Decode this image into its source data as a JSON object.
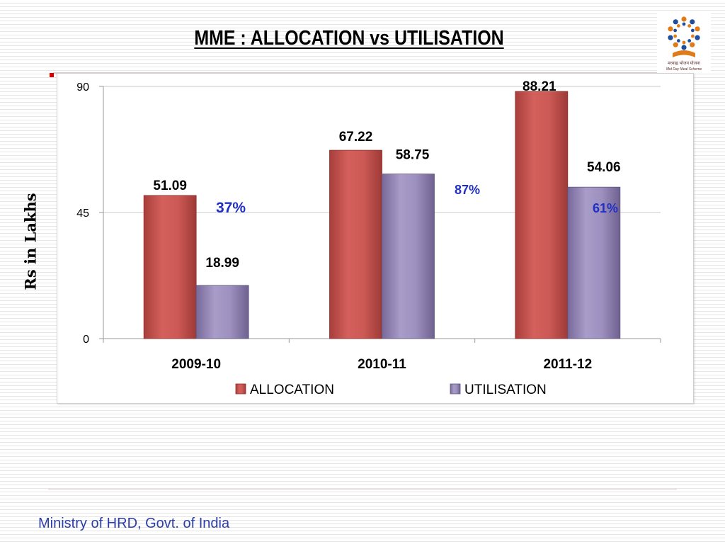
{
  "slide": {
    "title": "MME : ALLOCATION vs UTILISATION",
    "footer": "Ministry of HRD, Govt. of India"
  },
  "logo": {
    "caption": "मध्याह्न भोजन योजना",
    "subcaption": "Mid Day Meal Scheme",
    "icon": "mid-day-meal-logo"
  },
  "chart_data": {
    "type": "bar",
    "title": "MME : ALLOCATION vs UTILISATION",
    "ylabel": "Rs in Lakhs",
    "xlabel": "",
    "ylim": [
      0,
      90
    ],
    "yticks": [
      "0",
      "45",
      "90"
    ],
    "grid": true,
    "legend_position": "bottom",
    "categories": [
      "2009-10",
      "2010-11",
      "2011-12"
    ],
    "series": [
      {
        "name": "ALLOCATION",
        "values": [
          51.09,
          67.22,
          88.21
        ],
        "labels": [
          "51.09",
          "67.22",
          "88.21"
        ],
        "color": "#c0504d"
      },
      {
        "name": "UTILISATION",
        "values": [
          18.99,
          58.75,
          54.06
        ],
        "labels": [
          "18.99",
          "58.75",
          "54.06"
        ],
        "color": "#8b7fae"
      }
    ],
    "annotations": [
      "37%",
      "87%",
      "61%"
    ],
    "annotation_color": "#1f2fc4"
  }
}
